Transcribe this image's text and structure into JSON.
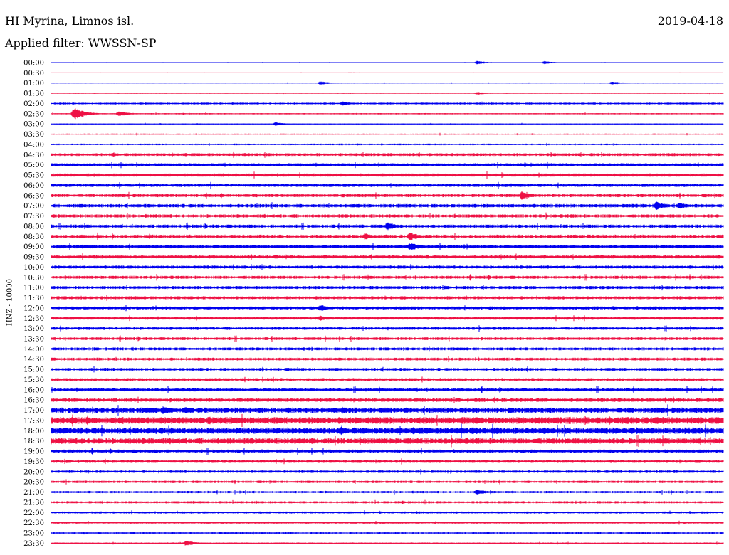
{
  "header": {
    "station": "HI Myrina, Limnos isl.",
    "date": "2019-04-18",
    "filter": "Applied filter: WWSSN-SP"
  },
  "chart_data": {
    "type": "helicorder",
    "channel_label": "HNZ - 10000",
    "row_interval_minutes": 30,
    "row_labels": [
      "00:00",
      "00:30",
      "01:00",
      "01:30",
      "02:00",
      "02:30",
      "03:00",
      "03:30",
      "04:00",
      "04:30",
      "05:00",
      "05:30",
      "06:00",
      "06:30",
      "07:00",
      "07:30",
      "08:00",
      "08:30",
      "09:00",
      "09:30",
      "10:00",
      "10:30",
      "11:00",
      "11:30",
      "12:00",
      "12:30",
      "13:00",
      "13:30",
      "14:00",
      "14:30",
      "15:00",
      "15:30",
      "16:00",
      "16:30",
      "17:00",
      "17:30",
      "18:00",
      "18:30",
      "19:00",
      "19:30",
      "20:00",
      "20:30",
      "21:00",
      "21:30",
      "22:00",
      "22:30",
      "23:00",
      "23:30"
    ],
    "trace_colors": [
      "#0000ee",
      "#ee1144"
    ],
    "noise_amplitude": [
      0.3,
      0.2,
      0.3,
      0.4,
      0.9,
      0.6,
      0.5,
      0.6,
      0.8,
      1.4,
      1.6,
      1.6,
      1.6,
      1.6,
      1.7,
      1.6,
      1.6,
      1.7,
      1.7,
      1.6,
      1.5,
      1.5,
      1.5,
      1.5,
      1.5,
      1.5,
      1.4,
      1.4,
      1.4,
      1.4,
      1.4,
      1.4,
      1.6,
      1.8,
      2.6,
      3.3,
      3.1,
      2.8,
      1.6,
      1.5,
      1.3,
      1.2,
      1.1,
      1.1,
      1.0,
      0.9,
      0.8,
      0.7
    ],
    "events": [
      {
        "row": 0,
        "minute": 19,
        "amplitude": 2.5
      },
      {
        "row": 0,
        "minute": 22,
        "amplitude": 2.2
      },
      {
        "row": 2,
        "minute": 12,
        "amplitude": 2.5
      },
      {
        "row": 2,
        "minute": 25,
        "amplitude": 2.5
      },
      {
        "row": 3,
        "minute": 19,
        "amplitude": 2.0
      },
      {
        "row": 4,
        "minute": 13,
        "amplitude": 3.0
      },
      {
        "row": 5,
        "minute": 1,
        "amplitude": 9.0
      },
      {
        "row": 5,
        "minute": 3,
        "amplitude": 4.0
      },
      {
        "row": 6,
        "minute": 10,
        "amplitude": 2.5
      },
      {
        "row": 13,
        "minute": 21,
        "amplitude": 6.0
      },
      {
        "row": 14,
        "minute": 27,
        "amplitude": 6.0
      },
      {
        "row": 14,
        "minute": 28,
        "amplitude": 5.0
      },
      {
        "row": 16,
        "minute": 15,
        "amplitude": 6.0
      },
      {
        "row": 17,
        "minute": 14,
        "amplitude": 5.0
      },
      {
        "row": 17,
        "minute": 16,
        "amplitude": 6.0
      },
      {
        "row": 18,
        "minute": 16,
        "amplitude": 6.0
      },
      {
        "row": 24,
        "minute": 12,
        "amplitude": 5.0
      },
      {
        "row": 25,
        "minute": 12,
        "amplitude": 4.0
      },
      {
        "row": 34,
        "minute": 5,
        "amplitude": 6.0
      },
      {
        "row": 34,
        "minute": 6,
        "amplitude": 5.0
      },
      {
        "row": 34,
        "minute": 13,
        "amplitude": 5.0
      },
      {
        "row": 36,
        "minute": 22,
        "amplitude": 5.0
      },
      {
        "row": 42,
        "minute": 19,
        "amplitude": 4.0
      },
      {
        "row": 47,
        "minute": 6,
        "amplitude": 4.0
      }
    ]
  }
}
